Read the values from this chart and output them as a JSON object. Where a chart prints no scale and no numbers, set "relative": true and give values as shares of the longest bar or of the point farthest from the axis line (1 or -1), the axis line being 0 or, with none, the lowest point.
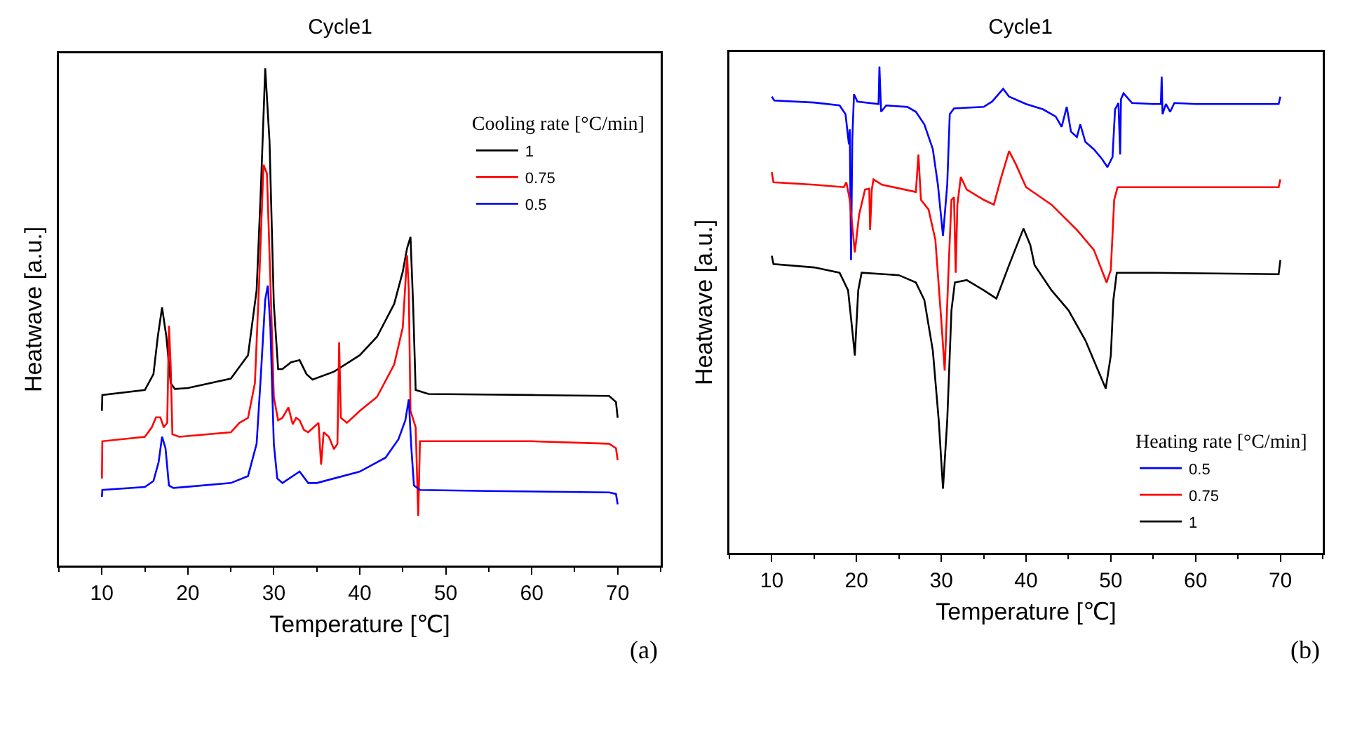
{
  "chart_data": [
    {
      "type": "line",
      "title": "Cycle1",
      "xlabel": "Temperature [℃]",
      "ylabel": "Heatwave [a.u.]",
      "legend_title": "Cooling rate [°C/min]",
      "relative": true,
      "xlim": [
        5,
        75
      ],
      "xticks": [
        10,
        20,
        30,
        40,
        50,
        60,
        70
      ],
      "grid": false,
      "legend": "top right",
      "marker": "none",
      "line_style": "solid",
      "annotations": [
        "(a)"
      ],
      "series": [
        {
          "name": "1",
          "color": "#000000",
          "x": [
            10,
            10.05,
            15,
            16,
            16.5,
            17,
            17.5,
            18,
            18.5,
            20,
            25,
            27,
            28,
            28.5,
            29,
            29.5,
            30,
            30.5,
            31,
            32,
            33,
            33.8,
            34.5,
            37,
            40,
            42,
            44,
            45,
            45.5,
            45.9,
            46.2,
            46.5,
            48,
            60,
            69,
            69.8,
            70
          ],
          "values": [
            0.311,
            0.343,
            0.353,
            0.385,
            0.46,
            0.519,
            0.46,
            0.367,
            0.355,
            0.357,
            0.376,
            0.423,
            0.554,
            0.76,
            1,
            0.853,
            0.526,
            0.395,
            0.395,
            0.409,
            0.413,
            0.385,
            0.374,
            0.39,
            0.423,
            0.46,
            0.526,
            0.591,
            0.638,
            0.661,
            0.526,
            0.353,
            0.345,
            0.343,
            0.341,
            0.329,
            0.297
          ]
        },
        {
          "name": "0.75",
          "color": "#ff0000",
          "x": [
            10,
            10.05,
            15,
            15.8,
            16.3,
            16.8,
            17.2,
            17.6,
            17.8,
            18,
            18.2,
            19,
            25,
            26,
            27,
            27.8,
            28.3,
            28.8,
            29.2,
            29.6,
            30,
            30.5,
            31,
            31.7,
            32.2,
            32.6,
            33,
            33.5,
            34,
            35.2,
            35.5,
            35.8,
            36.4,
            37,
            37.4,
            37.6,
            37.8,
            38.5,
            40,
            42,
            44,
            45,
            45.5,
            45.7,
            45.9,
            46.5,
            46.8,
            47,
            50,
            60,
            69,
            69.8,
            70
          ],
          "values": [
            0.175,
            0.25,
            0.259,
            0.278,
            0.298,
            0.298,
            0.278,
            0.287,
            0.482,
            0.404,
            0.264,
            0.259,
            0.268,
            0.287,
            0.297,
            0.367,
            0.573,
            0.806,
            0.788,
            0.573,
            0.339,
            0.292,
            0.297,
            0.318,
            0.284,
            0.297,
            0.292,
            0.273,
            0.268,
            0.287,
            0.203,
            0.268,
            0.259,
            0.234,
            0.245,
            0.449,
            0.297,
            0.287,
            0.311,
            0.339,
            0.404,
            0.479,
            0.624,
            0.554,
            0.311,
            0.278,
            0.1,
            0.25,
            0.25,
            0.25,
            0.245,
            0.236,
            0.212
          ]
        },
        {
          "name": "0.5",
          "color": "#0000ff",
          "x": [
            10,
            10.05,
            15,
            16,
            16.6,
            17,
            17.4,
            17.8,
            18.3,
            25,
            27,
            28,
            28.5,
            29,
            29.3,
            29.6,
            30,
            30.4,
            31,
            33,
            34,
            35,
            40,
            43,
            44.5,
            45.3,
            45.7,
            46,
            46.3,
            47,
            55,
            69,
            69.8,
            70
          ],
          "values": [
            0.138,
            0.152,
            0.158,
            0.17,
            0.208,
            0.259,
            0.236,
            0.161,
            0.156,
            0.166,
            0.18,
            0.245,
            0.385,
            0.535,
            0.563,
            0.479,
            0.245,
            0.175,
            0.166,
            0.189,
            0.166,
            0.166,
            0.189,
            0.217,
            0.254,
            0.292,
            0.334,
            0.236,
            0.161,
            0.152,
            0.15,
            0.147,
            0.144,
            0.123
          ]
        }
      ]
    },
    {
      "type": "line",
      "title": "Cycle1",
      "xlabel": "Temperature [℃]",
      "ylabel": "Heatwave [a.u.]",
      "legend_title": "Heating rate [°C/min]",
      "relative": true,
      "xlim": [
        5,
        75
      ],
      "xticks": [
        10,
        20,
        30,
        40,
        50,
        60,
        70
      ],
      "grid": false,
      "legend": "bottom right",
      "marker": "none",
      "line_style": "solid",
      "annotations": [
        "(b)"
      ],
      "series": [
        {
          "name": "0.5",
          "color": "#0000ff",
          "x": [
            10,
            10.3,
            15,
            18,
            18.7,
            19.1,
            19.2,
            19.35,
            19.5,
            19.7,
            20.1,
            22.6,
            22.7,
            22.9,
            23.5,
            26,
            27,
            28,
            29,
            29.6,
            30.2,
            30.7,
            31,
            31.5,
            35,
            36,
            37.3,
            38,
            40,
            42,
            43.5,
            44.2,
            44.8,
            45.3,
            46,
            46.4,
            47,
            48,
            49,
            49.6,
            50.2,
            50.5,
            50.9,
            51.1,
            51.2,
            51.5,
            52.5,
            55,
            55.9,
            56,
            56.1,
            56.5,
            57,
            57.5,
            60,
            69.8,
            70
          ],
          "values": [
            0.938,
            0.93,
            0.926,
            0.92,
            0.902,
            0.84,
            0.871,
            0.602,
            0.85,
            0.943,
            0.928,
            0.923,
            1,
            0.907,
            0.92,
            0.917,
            0.907,
            0.881,
            0.83,
            0.757,
            0.652,
            0.757,
            0.902,
            0.914,
            0.917,
            0.928,
            0.954,
            0.938,
            0.923,
            0.912,
            0.897,
            0.876,
            0.917,
            0.866,
            0.855,
            0.881,
            0.845,
            0.83,
            0.809,
            0.793,
            0.814,
            0.912,
            0.925,
            0.819,
            0.933,
            0.945,
            0.925,
            0.923,
            0.923,
            0.979,
            0.902,
            0.923,
            0.907,
            0.925,
            0.923,
            0.923,
            0.938
          ]
        },
        {
          "name": "0.75",
          "color": "#ff0000",
          "x": [
            10,
            10.2,
            15,
            18.5,
            18.8,
            19.2,
            19.8,
            20.3,
            21,
            21.5,
            21.6,
            21.8,
            22,
            23,
            27,
            27.3,
            27.6,
            28.5,
            29.3,
            30,
            30.4,
            30.9,
            31.2,
            31.5,
            31.7,
            31.9,
            32.3,
            33,
            35,
            36.2,
            37,
            38,
            38.8,
            40,
            43,
            46,
            48,
            49.5,
            50,
            50.4,
            50.8,
            55,
            69.8,
            70
          ],
          "values": [
            0.783,
            0.762,
            0.757,
            0.752,
            0.762,
            0.726,
            0.618,
            0.695,
            0.747,
            0.749,
            0.664,
            0.747,
            0.768,
            0.757,
            0.742,
            0.819,
            0.726,
            0.706,
            0.644,
            0.478,
            0.375,
            0.602,
            0.726,
            0.731,
            0.576,
            0.716,
            0.773,
            0.747,
            0.726,
            0.716,
            0.768,
            0.826,
            0.799,
            0.752,
            0.716,
            0.664,
            0.623,
            0.556,
            0.582,
            0.726,
            0.752,
            0.752,
            0.752,
            0.768
          ]
        },
        {
          "name": "1",
          "color": "#000000",
          "x": [
            10,
            10.2,
            15,
            18,
            19,
            19.5,
            19.8,
            20.2,
            20.6,
            25,
            27,
            28,
            29,
            29.7,
            30.2,
            30.7,
            31.2,
            31.6,
            33,
            35,
            36.5,
            38,
            39.7,
            40.5,
            41,
            43,
            45,
            47,
            48.5,
            49.4,
            50,
            50.3,
            50.7,
            55,
            69.8,
            70
          ],
          "values": [
            0.611,
            0.594,
            0.587,
            0.576,
            0.54,
            0.458,
            0.406,
            0.54,
            0.576,
            0.571,
            0.556,
            0.52,
            0.416,
            0.272,
            0.132,
            0.272,
            0.499,
            0.556,
            0.561,
            0.54,
            0.523,
            0.592,
            0.667,
            0.633,
            0.592,
            0.54,
            0.499,
            0.437,
            0.375,
            0.338,
            0.406,
            0.52,
            0.576,
            0.576,
            0.573,
            0.602
          ]
        }
      ]
    }
  ]
}
